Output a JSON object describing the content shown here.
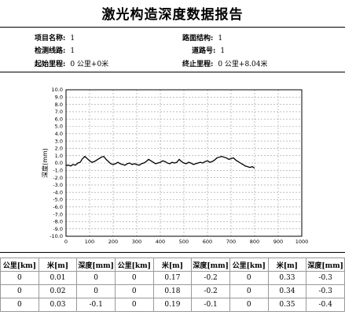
{
  "title": "激光构造深度数据报告",
  "info": {
    "project_label": "项目名称:",
    "project_value": "1",
    "road_struct_label": "路面结构:",
    "road_struct_value": "1",
    "line_label": "检测线路:",
    "line_value": "1",
    "lane_label": "道路号:",
    "lane_value": "1",
    "start_label": "起始里程:",
    "start_value": "0 公里+0米",
    "end_label": "终止里程:",
    "end_value": "0 公里+8.04米"
  },
  "chart_data": {
    "type": "line",
    "title": "",
    "xlabel": "",
    "ylabel": "深度(mm)",
    "xlim": [
      0,
      1000
    ],
    "ylim": [
      -10,
      10
    ],
    "x_ticks": [
      0,
      100,
      200,
      300,
      400,
      500,
      600,
      700,
      800,
      900,
      1000
    ],
    "y_ticks": [
      10.0,
      9.0,
      8.0,
      7.0,
      6.0,
      5.0,
      4.0,
      3.0,
      2.0,
      1.0,
      0.0,
      -1.0,
      -2.0,
      -3.0,
      -4.0,
      -5.0,
      -6.0,
      -7.0,
      -8.0,
      -9.0,
      -10.0
    ],
    "grid": true,
    "series": [
      {
        "values": [
          -0.3,
          -0.3,
          -0.4,
          -0.2,
          -0.3,
          0.0,
          0.1,
          0.6,
          0.9,
          0.6,
          0.3,
          0.1,
          0.2,
          0.4,
          0.6,
          0.8,
          0.9,
          0.5,
          0.2,
          -0.1,
          -0.2,
          -0.1,
          0.1,
          -0.1,
          -0.2,
          -0.3,
          -0.1,
          0.0,
          -0.2,
          -0.1,
          -0.2,
          -0.3,
          -0.1,
          0.0,
          0.2,
          0.5,
          0.3,
          0.1,
          -0.1,
          0.0,
          0.1,
          0.3,
          0.2,
          0.0,
          -0.1,
          0.1,
          0.0,
          0.1,
          0.5,
          0.2,
          0.0,
          -0.1,
          0.1,
          0.0,
          -0.2,
          -0.1,
          0.0,
          0.1,
          0.0,
          0.2,
          0.3,
          0.1,
          0.2,
          0.4,
          0.7,
          0.8,
          0.9,
          0.8,
          0.7,
          0.5,
          0.6,
          0.7,
          0.4,
          0.2,
          0.0,
          -0.2,
          -0.4,
          -0.5,
          -0.6,
          -0.5,
          -0.7
        ]
      }
    ]
  },
  "table": {
    "headers": [
      "公里[km]",
      "米[m]",
      "深度[mm]",
      "公里[km]",
      "米[m]",
      "深度[mm]",
      "公里[km]",
      "米[m]",
      "深度[mm]"
    ],
    "rows": [
      [
        "0",
        "0.01",
        "0",
        "0",
        "0.17",
        "-0.2",
        "0",
        "0.33",
        "-0.3"
      ],
      [
        "0",
        "0.02",
        "0",
        "0",
        "0.18",
        "-0.2",
        "0",
        "0.34",
        "-0.3"
      ],
      [
        "0",
        "0.03",
        "-0.1",
        "0",
        "0.19",
        "-0.1",
        "0",
        "0.35",
        "-0.4"
      ]
    ]
  }
}
